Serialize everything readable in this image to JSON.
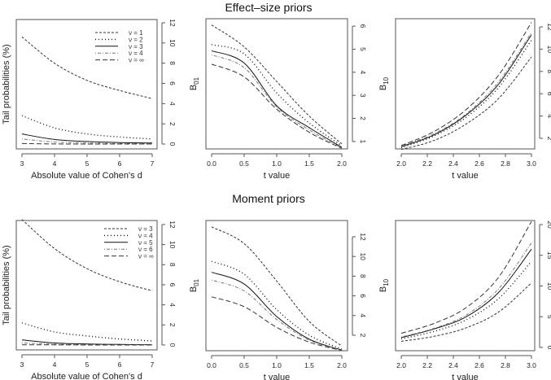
{
  "chart_data": [
    {
      "type": "line",
      "row_title": "Effect–size priors",
      "xlabel": "Absolute value of Cohen's d",
      "ylabel": "Tail probabilities (%)",
      "xlim": [
        2.825,
        7.15
      ],
      "ylim": [
        -0.48,
        12.32
      ],
      "xticks": [
        "3",
        "4",
        "5",
        "6",
        "7"
      ],
      "xtick_values": [
        3,
        4,
        5,
        6,
        7
      ],
      "yticks": [
        "0",
        "2",
        "4",
        "6",
        "8",
        "10",
        "12"
      ],
      "ytick_values": [
        0,
        2,
        4,
        6,
        8,
        10,
        12
      ],
      "legend": "top-right",
      "x": [
        3,
        4,
        5,
        6,
        7
      ],
      "series": [
        {
          "name": "ν = 1",
          "style": "shortdash",
          "values": [
            10.6,
            8.0,
            6.3,
            5.3,
            4.5
          ]
        },
        {
          "name": "ν = 2",
          "style": "dotted",
          "values": [
            2.8,
            1.6,
            1.0,
            0.7,
            0.5
          ]
        },
        {
          "name": "ν = 3",
          "style": "solid",
          "values": [
            1.0,
            0.45,
            0.25,
            0.15,
            0.1
          ]
        },
        {
          "name": "ν = 4",
          "style": "dashdot",
          "values": [
            0.5,
            0.2,
            0.1,
            0.05,
            0.03
          ]
        },
        {
          "name": "ν = ∞",
          "style": "longdash",
          "values": [
            0.05,
            0.01,
            0,
            0,
            0
          ]
        }
      ]
    },
    {
      "type": "line",
      "xlabel": "t value",
      "ylabel": "B",
      "ylabel_sub": "01",
      "xlim": [
        -0.0875,
        2.0875
      ],
      "ylim": [
        0.68,
        6.32
      ],
      "xticks": [
        "0.0",
        "0.5",
        "1.0",
        "1.5",
        "2.0"
      ],
      "xtick_values": [
        0,
        0.5,
        1,
        1.5,
        2
      ],
      "yticks": [
        "1",
        "2",
        "3",
        "4",
        "5",
        "6"
      ],
      "ytick_values": [
        1,
        2,
        3,
        4,
        5,
        6
      ],
      "x": [
        0,
        0.5,
        1.0,
        1.5,
        2.0
      ],
      "series": [
        {
          "name": "ν = 1",
          "style": "shortdash",
          "values": [
            6.05,
            5.1,
            3.6,
            2.1,
            0.9
          ]
        },
        {
          "name": "ν = 2",
          "style": "dotted",
          "values": [
            5.2,
            4.8,
            3.1,
            1.8,
            0.82
          ]
        },
        {
          "name": "ν = 3",
          "style": "solid",
          "values": [
            4.93,
            4.4,
            2.55,
            1.6,
            0.75
          ]
        },
        {
          "name": "ν = 4",
          "style": "dashdot",
          "values": [
            4.75,
            4.2,
            2.5,
            1.5,
            0.72
          ]
        },
        {
          "name": "ν = ∞",
          "style": "longdash",
          "values": [
            4.35,
            3.8,
            2.4,
            1.4,
            0.7
          ]
        }
      ]
    },
    {
      "type": "line",
      "xlabel": "t value",
      "ylabel": "B",
      "ylabel_sub": "10",
      "xlim": [
        1.956,
        3.025
      ],
      "ylim": [
        1.05,
        12.73
      ],
      "xticks": [
        "2.0",
        "2.2",
        "2.4",
        "2.6",
        "2.8",
        "3.0"
      ],
      "xtick_values": [
        2,
        2.2,
        2.4,
        2.6,
        2.8,
        3
      ],
      "yticks": [
        "2",
        "4",
        "6",
        "8",
        "10",
        "12"
      ],
      "ytick_values": [
        2,
        4,
        6,
        8,
        10,
        12
      ],
      "x": [
        2.0,
        2.25,
        2.5,
        2.75,
        3.0
      ],
      "series": [
        {
          "name": "ν = 1",
          "style": "shortdash",
          "values": [
            1.0,
            1.8,
            3.3,
            5.6,
            9.3
          ]
        },
        {
          "name": "ν = 2",
          "style": "dotted",
          "values": [
            1.15,
            2.2,
            3.9,
            6.6,
            10.8
          ]
        },
        {
          "name": "ν = 3",
          "style": "solid",
          "values": [
            1.25,
            2.3,
            4.1,
            6.9,
            11.3
          ]
        },
        {
          "name": "ν = 4",
          "style": "dashdot",
          "values": [
            1.3,
            2.4,
            4.2,
            7.1,
            11.5
          ]
        },
        {
          "name": "ν = ∞",
          "style": "longdash",
          "values": [
            1.35,
            2.6,
            4.6,
            7.7,
            12.4
          ]
        }
      ]
    },
    {
      "type": "line",
      "row_title": "Moment priors",
      "xlabel": "Absolute value of Cohen's d",
      "ylabel": "Tail probabilities (%)",
      "xlim": [
        2.825,
        7.15
      ],
      "ylim": [
        -0.49,
        12.4
      ],
      "xticks": [
        "3",
        "4",
        "5",
        "6",
        "7"
      ],
      "xtick_values": [
        3,
        4,
        5,
        6,
        7
      ],
      "yticks": [
        "0",
        "2",
        "4",
        "6",
        "8",
        "10",
        "12"
      ],
      "ytick_values": [
        0,
        2,
        4,
        6,
        8,
        10,
        12
      ],
      "legend": "top-right",
      "x": [
        3,
        4,
        5,
        6,
        7
      ],
      "series": [
        {
          "name": "ν = 3",
          "style": "shortdash",
          "values": [
            12.5,
            9.6,
            7.6,
            6.3,
            5.4
          ]
        },
        {
          "name": "ν = 4",
          "style": "dotted",
          "values": [
            2.2,
            1.3,
            0.9,
            0.6,
            0.4
          ]
        },
        {
          "name": "ν = 5",
          "style": "solid",
          "values": [
            0.5,
            0.2,
            0.1,
            0.05,
            0.03
          ]
        },
        {
          "name": "ν = 6",
          "style": "dashdot",
          "values": [
            0.2,
            0.08,
            0.04,
            0.02,
            0.01
          ]
        },
        {
          "name": "ν = ∞",
          "style": "longdash",
          "values": [
            0.02,
            0.01,
            0,
            0,
            0
          ]
        }
      ]
    },
    {
      "type": "line",
      "xlabel": "t value",
      "ylabel": "B",
      "ylabel_sub": "01",
      "xlim": [
        -0.0875,
        2.0875
      ],
      "ylim": [
        0.43,
        13.65
      ],
      "xticks": [
        "0.0",
        "0.5",
        "1.0",
        "1.5",
        "2.0"
      ],
      "xtick_values": [
        0,
        0.5,
        1,
        1.5,
        2
      ],
      "yticks": [
        "2",
        "4",
        "6",
        "8",
        "10",
        "12"
      ],
      "ytick_values": [
        2,
        4,
        6,
        8,
        10,
        12
      ],
      "x": [
        0,
        0.5,
        1.0,
        1.5,
        2.0
      ],
      "series": [
        {
          "name": "ν = 3",
          "style": "shortdash",
          "values": [
            13.0,
            11.3,
            7.5,
            3.4,
            0.9
          ]
        },
        {
          "name": "ν = 4",
          "style": "dotted",
          "values": [
            9.5,
            8.2,
            4.6,
            2.0,
            0.6
          ]
        },
        {
          "name": "ν = 5",
          "style": "solid",
          "values": [
            8.4,
            7.2,
            3.9,
            1.6,
            0.5
          ]
        },
        {
          "name": "ν = 6",
          "style": "dashdot",
          "values": [
            7.6,
            6.5,
            3.6,
            1.5,
            0.5
          ]
        },
        {
          "name": "ν = ∞",
          "style": "longdash",
          "values": [
            5.9,
            4.9,
            2.8,
            1.3,
            0.45
          ]
        }
      ]
    },
    {
      "type": "line",
      "xlabel": "t value",
      "ylabel": "B",
      "ylabel_sub": "10",
      "xlim": [
        1.956,
        3.025
      ],
      "ylim": [
        -0.53,
        20.66
      ],
      "xticks": [
        "2.0",
        "2.2",
        "2.4",
        "2.6",
        "2.8",
        "3.0"
      ],
      "xtick_values": [
        2,
        2.2,
        2.4,
        2.6,
        2.8,
        3
      ],
      "yticks": [
        "0",
        "5",
        "10",
        "15",
        "20"
      ],
      "ytick_values": [
        0,
        5,
        10,
        15,
        20
      ],
      "x": [
        2.0,
        2.25,
        2.5,
        2.75,
        3.0
      ],
      "series": [
        {
          "name": "ν = 3",
          "style": "shortdash",
          "values": [
            1.0,
            1.8,
            3.2,
            5.8,
            10.5
          ]
        },
        {
          "name": "ν = 4",
          "style": "dotted",
          "values": [
            1.4,
            2.6,
            4.5,
            8.0,
            14.0
          ]
        },
        {
          "name": "ν = 5",
          "style": "solid",
          "values": [
            1.6,
            3.0,
            5.0,
            9.0,
            16.0
          ]
        },
        {
          "name": "ν = 6",
          "style": "dashdot",
          "values": [
            1.7,
            3.1,
            5.3,
            9.6,
            17.0
          ]
        },
        {
          "name": "ν = ∞",
          "style": "longdash",
          "values": [
            2.3,
            3.9,
            6.5,
            11.5,
            20.5
          ]
        }
      ]
    }
  ]
}
